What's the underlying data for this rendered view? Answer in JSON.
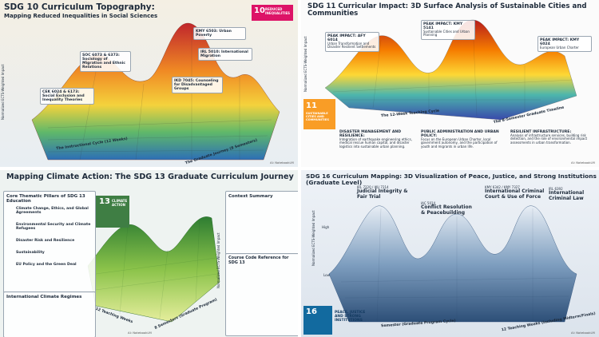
{
  "panels": [
    {
      "title": "SDG 10 Curriculum Topography:",
      "subtitle": "Mapping Reduced Inequalities in Social Sciences",
      "badge": {
        "number": "10",
        "label": "REDUCED INEQUALITIES"
      },
      "callouts": [
        "KMY 6503: Urban Poverty",
        "IRL 5010: International Migration",
        "SOC 6073 & 6373: Sociology of Migration and Ethnic Relations",
        "IKD 7045: Counseling for Disadvantaged Groups",
        "CEK 6024 & 6173: Social Exclusion and Inequality Theories"
      ],
      "axes": [
        "Normalized ECTS-Weighted Impact",
        "The Instructional Cycle (12 Weeks)",
        "The Graduate Journey (8 Semesters)"
      ],
      "credit": "AI: NotebookLM"
    },
    {
      "title": "SDG 11 Curricular Impact: 3D Surface Analysis of Sustainable Cities and Communities",
      "badge": {
        "number": "11",
        "label": "SUSTAINABLE CITIES AND COMMUNITIES"
      },
      "callouts": [
        {
          "head": "PEAK IMPACT: AFY 6014",
          "text": "Urban Transformation and Disaster Resilient Settlements"
        },
        {
          "head": "PEAK IMPACT: KMY 5141",
          "text": "Sustainable Cities and Urban Planning"
        },
        {
          "head": "PEAK IMPACT: KMY 6024",
          "text": "European Urban Charter"
        }
      ],
      "axes": [
        "Normalized ECTS-Weighted Impact",
        "The 12-Week Teaching Cycle",
        "The 8-Semester Graduate Timeline"
      ],
      "sections": [
        {
          "head": "DISASTER MANAGEMENT AND RESILIENCE:",
          "text": "Integration of earthquake engineering ethics, medical rescue human capital, and disaster logistics into sustainable urban planning."
        },
        {
          "head": "PUBLIC ADMINISTRATION AND URBAN POLICY:",
          "text": "Focus on the European Urban Charter, local government autonomy, and the participation of youth and migrants in urban life."
        },
        {
          "head": "RESILIENT INFRASTRUCTURE:",
          "text": "Analysis of infrastructure services, building risk detection, and the role of environmental impact assessments in urban transformation."
        }
      ],
      "credit": "AI: NotebookLM"
    },
    {
      "title": "Mapping Climate Action: The SDG 13 Graduate Curriculum Journey",
      "pillars_title": "Core Thematic Pillars of SDG 13 Education",
      "pillars": [
        "Climate Change, Ethics, and Global Agreements",
        "Environmental Security and Climate Refugees",
        "Disaster Risk and Resilience",
        "Sustainability",
        "EU Policy and the Green Deal"
      ],
      "regimes_title": "International Climate Regimes",
      "badge": {
        "number": "13",
        "label": "CLIMATE ACTION"
      },
      "context_title": "Context Summary",
      "reference_title": "Course Code Reference for SDG 13",
      "axes": [
        "Normalized ECTS-Weighted Impact",
        "12 Teaching Weeks",
        "8 Semesters (Graduate Program)"
      ],
      "credit": "AI: NotebookLM"
    },
    {
      "title": "SDG 16 Curriculum Mapping: 3D Visualization of Peace, Justice, and Strong Institutions (Graduate Level)",
      "callouts": [
        {
          "code": "IRL 7220 / IKU 7214",
          "text": "Judicial Integrity & Fair Trial"
        },
        {
          "code": "IAÇ 5014",
          "text": "Conflict Resolution & Peacebuilding"
        },
        {
          "code": "KMY 6342 / KMY 7327",
          "text": "International Criminal Court & Use of Force"
        },
        {
          "code": "IRL 6392",
          "text": "International Criminal Law"
        }
      ],
      "badge": {
        "number": "16",
        "label": "PEACE, JUSTICE AND STRONG INSTITUTIONS"
      },
      "axes": [
        "Normalized ECTS-Weighted Impact",
        "Semester (Graduate Program Cycle)",
        "12 Teaching Weeks (Including Midterm/Finals)"
      ],
      "levels": [
        "High",
        "Low"
      ],
      "credit": "AI: NotebookLM"
    }
  ]
}
